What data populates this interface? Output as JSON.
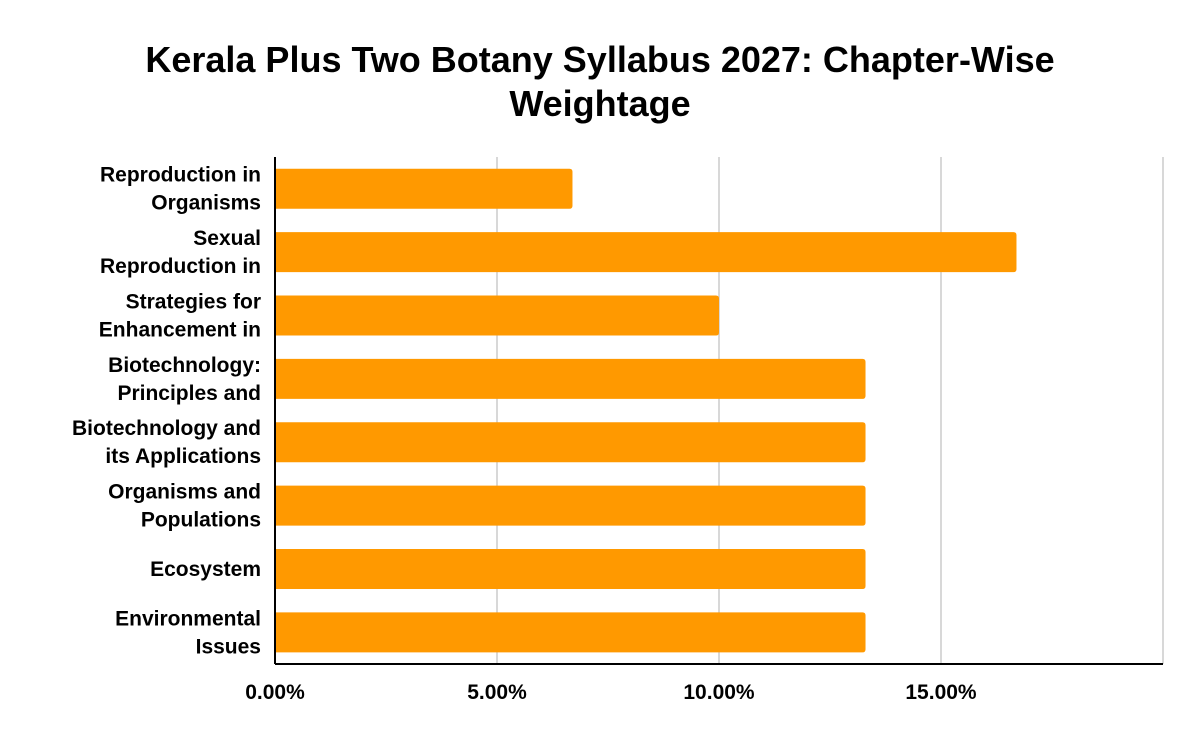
{
  "chart_data": {
    "type": "bar",
    "orientation": "horizontal",
    "title": "Kerala Plus Two Botany Syllabus 2027: Chapter-Wise Weightage",
    "categories": [
      [
        "Reproduction in",
        "Organisms"
      ],
      [
        "Sexual",
        "Reproduction in"
      ],
      [
        "Strategies for",
        "Enhancement in"
      ],
      [
        "Biotechnology:",
        "Principles and"
      ],
      [
        "Biotechnology and",
        "its Applications"
      ],
      [
        "Organisms and",
        "Populations"
      ],
      [
        "Ecosystem"
      ],
      [
        "Environmental",
        "Issues"
      ]
    ],
    "values": [
      6.7,
      16.7,
      10.0,
      13.3,
      13.3,
      13.3,
      13.3,
      13.3
    ],
    "xlim": [
      0,
      20
    ],
    "xticks": [
      0,
      5,
      10,
      15
    ],
    "tick_labels": [
      "0.00%",
      "5.00%",
      "10.00%",
      "15.00%"
    ],
    "xlabel": "",
    "ylabel": "",
    "grid": true,
    "legend": "none",
    "bar_color": "#ff9900",
    "grid_color": "#cccccc",
    "axis_color": "#000000"
  }
}
